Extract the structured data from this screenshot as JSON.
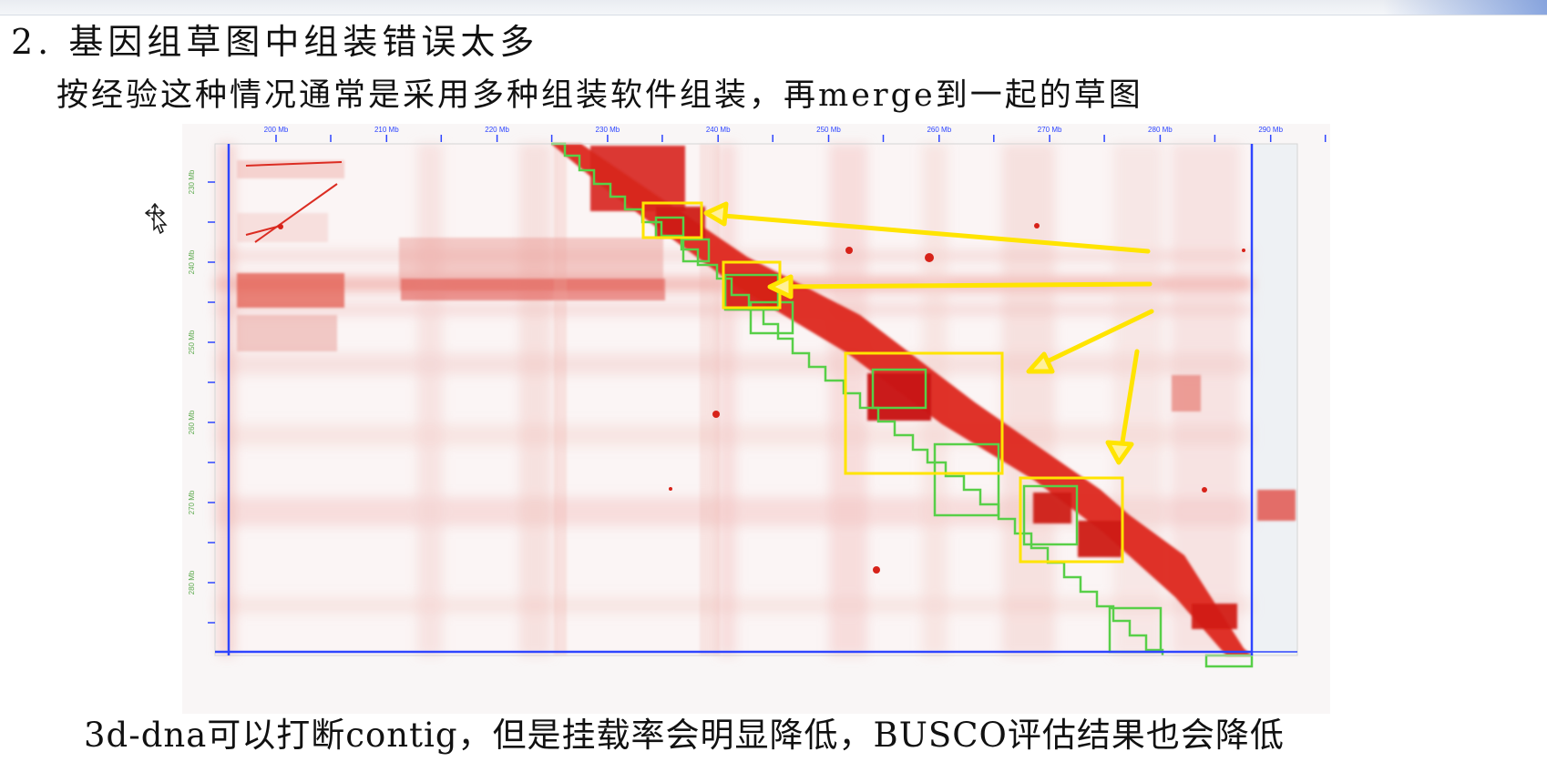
{
  "page": {
    "heading": "2.  基因组草图中组装错误太多",
    "subtitle": "按经验这种情况通常是采用多种组装软件组装，再merge到一起的草图",
    "bottom_note": "3d-dna可以打断contig，但是挂载率会明显降低，BUSCO评估结果也会降低"
  },
  "heatmap": {
    "x_ticks": [
      "200 Mb",
      "210 Mb",
      "220 Mb",
      "230 Mb",
      "240 Mb",
      "250 Mb",
      "260 Mb",
      "270 Mb",
      "280 Mb",
      "290 Mb"
    ],
    "y_ticks": [
      "230 Mb",
      "240 Mb",
      "250 Mb",
      "260 Mb",
      "270 Mb",
      "280 Mb"
    ],
    "colors": {
      "signal": "#d61f16",
      "highlight": "#ffe400",
      "contig_outline": "#58cf48",
      "axis": "#2e45ff",
      "x_tick_text": "#2e45ff",
      "y_tick_text": "#5daa4e"
    }
  },
  "cursor": {
    "icon": "move-cursor-icon"
  }
}
